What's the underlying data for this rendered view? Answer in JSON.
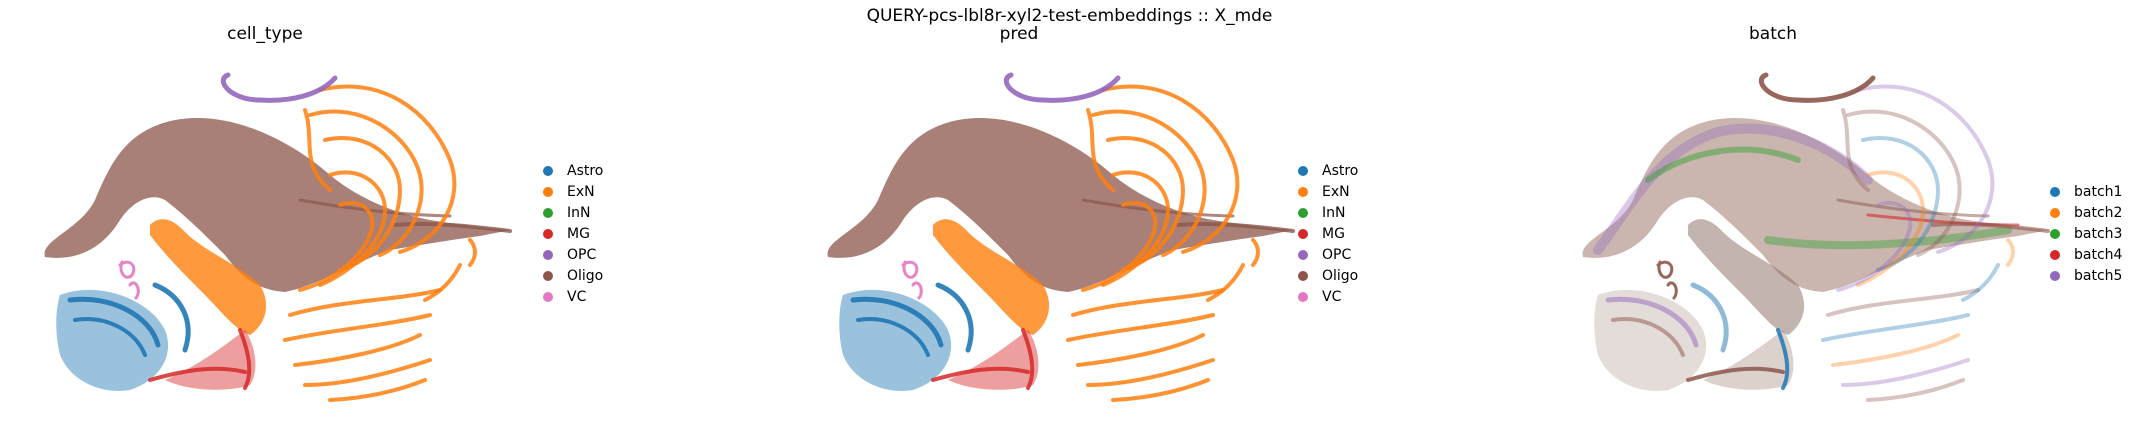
{
  "figure": {
    "suptitle": "QUERY-pcs-lbl8r-xyl2-test-embeddings :: X_mde"
  },
  "colors": {
    "blue": "#1f77b4",
    "orange": "#ff7f0e",
    "green": "#2ca02c",
    "red": "#d62728",
    "purple": "#9467bd",
    "brown": "#8c564b",
    "pink": "#e377c2"
  },
  "chart_data": [
    {
      "type": "scatter",
      "title": "cell_type",
      "xlabel": "",
      "ylabel": "",
      "axes_visible": false,
      "grid": false,
      "legend_placement": "right",
      "legend": [
        {
          "label": "Astro",
          "color": "#1f77b4"
        },
        {
          "label": "ExN",
          "color": "#ff7f0e"
        },
        {
          "label": "InN",
          "color": "#2ca02c"
        },
        {
          "label": "MG",
          "color": "#d62728"
        },
        {
          "label": "OPC",
          "color": "#9467bd"
        },
        {
          "label": "Oligo",
          "color": "#8c564b"
        },
        {
          "label": "VC",
          "color": "#e377c2"
        }
      ]
    },
    {
      "type": "scatter",
      "title": "pred",
      "xlabel": "",
      "ylabel": "",
      "axes_visible": false,
      "grid": false,
      "legend_placement": "right",
      "legend": [
        {
          "label": "Astro",
          "color": "#1f77b4"
        },
        {
          "label": "ExN",
          "color": "#ff7f0e"
        },
        {
          "label": "InN",
          "color": "#2ca02c"
        },
        {
          "label": "MG",
          "color": "#d62728"
        },
        {
          "label": "OPC",
          "color": "#9467bd"
        },
        {
          "label": "Oligo",
          "color": "#8c564b"
        },
        {
          "label": "VC",
          "color": "#e377c2"
        }
      ]
    },
    {
      "type": "scatter",
      "title": "batch",
      "xlabel": "",
      "ylabel": "",
      "axes_visible": false,
      "grid": false,
      "legend_placement": "right",
      "legend": [
        {
          "label": "batch1",
          "color": "#1f77b4"
        },
        {
          "label": "batch2",
          "color": "#ff7f0e"
        },
        {
          "label": "batch3",
          "color": "#2ca02c"
        },
        {
          "label": "batch4",
          "color": "#d62728"
        },
        {
          "label": "batch5",
          "color": "#9467bd"
        }
      ]
    }
  ]
}
